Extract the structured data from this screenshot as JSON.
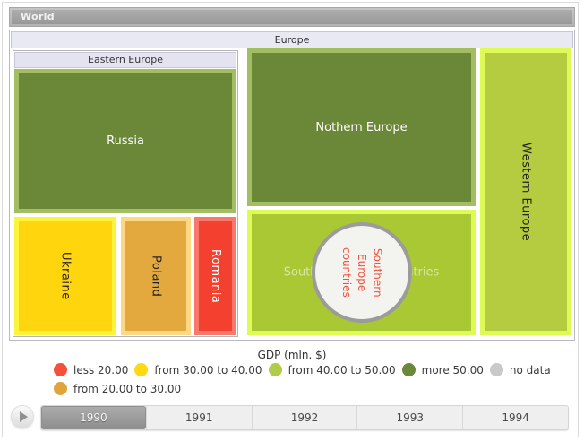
{
  "breadcrumb": {
    "world": "World"
  },
  "headers": {
    "europe": "Europe",
    "eastern_europe": "Eastern Europe"
  },
  "tiles": {
    "russia": {
      "label": "Russia",
      "fill": "#6b8839",
      "border_color": "#a3be62"
    },
    "ukraine": {
      "label": "Ukraine",
      "fill": "#ffd60e",
      "border_color": "#fcf33c"
    },
    "poland": {
      "label": "Poland",
      "fill": "#e3a93f",
      "border_color": "#ffd886"
    },
    "romania": {
      "label": "Romania",
      "fill": "#f4402e",
      "border_color": "#f8786b"
    },
    "northern_europe": {
      "label": "Nothern Europe",
      "fill": "#6b8839",
      "border_color": "#a3be62"
    },
    "southern_europe": {
      "label": "Southern Europe countries",
      "fill": "#aac834",
      "border_color": "#ddfb54",
      "marker_label": "Southern Europe countries",
      "marker_text_color": "#f4503c",
      "marker_fill": "#f3f3ef",
      "marker_border_color": "#9b9b9b"
    },
    "western_europe": {
      "label": "Western Europe",
      "fill": "#b5cc41",
      "border_color": "#ddfb54"
    }
  },
  "legend": {
    "title": "GDP (mln. $)",
    "items": [
      {
        "label": "less 20.00",
        "color": "#f4503c"
      },
      {
        "label": "from 30.00 to 40.00",
        "color": "#ffd911"
      },
      {
        "label": "from 40.00 to 50.00",
        "color": "#b0cc49"
      },
      {
        "label": "more 50.00",
        "color": "#6a8839"
      },
      {
        "label": "no data",
        "color": "#c9c9c9"
      },
      {
        "label": "from 20.00 to 30.00",
        "color": "#e0a43b"
      }
    ]
  },
  "timeline": {
    "years": [
      "1990",
      "1991",
      "1992",
      "1993",
      "1994"
    ],
    "selected_year": "1990",
    "play_icon": "play-triangle"
  },
  "chart_data": {
    "type": "treemap",
    "title": "GDP (mln. $)",
    "legend_position": "bottom",
    "selected_year": "1990",
    "years": [
      "1990",
      "1991",
      "1992",
      "1993",
      "1994"
    ],
    "color_scale": [
      {
        "range": "less 20.00",
        "color": "#f4503c"
      },
      {
        "range": "from 20.00 to 30.00",
        "color": "#e0a43b"
      },
      {
        "range": "from 30.00 to 40.00",
        "color": "#ffd911"
      },
      {
        "range": "from 40.00 to 50.00",
        "color": "#b0cc49"
      },
      {
        "range": "more 50.00",
        "color": "#6a8839"
      },
      {
        "range": "no data",
        "color": "#c9c9c9"
      }
    ],
    "hierarchy": {
      "name": "World",
      "children": [
        {
          "name": "Europe",
          "children": [
            {
              "name": "Eastern Europe",
              "children": [
                {
                  "name": "Russia",
                  "gdp_category": "more 50.00"
                },
                {
                  "name": "Ukraine",
                  "gdp_category": "from 30.00 to 40.00"
                },
                {
                  "name": "Poland",
                  "gdp_category": "from 20.00 to 30.00"
                },
                {
                  "name": "Romania",
                  "gdp_category": "less 20.00"
                }
              ]
            },
            {
              "name": "Nothern Europe",
              "gdp_category": "more 50.00"
            },
            {
              "name": "Southern Europe countries",
              "gdp_category": "from 40.00 to 50.00",
              "marker": "circle"
            },
            {
              "name": "Western Europe",
              "gdp_category": "from 40.00 to 50.00"
            }
          ]
        }
      ]
    }
  }
}
